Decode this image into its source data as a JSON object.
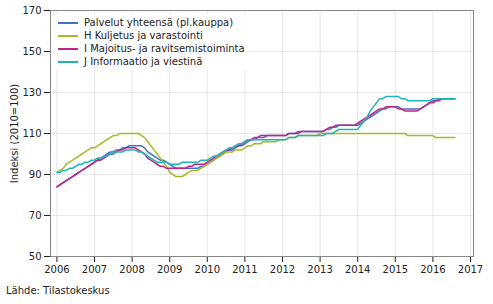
{
  "chart_data": {
    "type": "line",
    "ylabel": "Indeksi (2010=100)",
    "source": "Lähde: Tilastokeskus",
    "xlim": [
      2005.83,
      2017.08
    ],
    "xticks": [
      2006,
      2007,
      2008,
      2009,
      2010,
      2011,
      2012,
      2013,
      2014,
      2015,
      2016,
      2017
    ],
    "ylim": [
      50,
      170
    ],
    "yticks": [
      50,
      70,
      90,
      110,
      130,
      150,
      170
    ],
    "grid": true,
    "legend": "upper left",
    "x": [
      2006,
      2006.0833333333333,
      2006.1666666666667,
      2006.25,
      2006.3333333333333,
      2006.4166666666667,
      2006.5,
      2006.5833333333333,
      2006.6666666666667,
      2006.75,
      2006.8333333333333,
      2006.9166666666667,
      2007,
      2007.0833333333333,
      2007.1666666666667,
      2007.25,
      2007.3333333333333,
      2007.4166666666667,
      2007.5,
      2007.5833333333333,
      2007.6666666666667,
      2007.75,
      2007.8333333333333,
      2007.9166666666667,
      2008,
      2008.0833333333333,
      2008.1666666666667,
      2008.25,
      2008.3333333333333,
      2008.4166666666667,
      2008.5,
      2008.5833333333333,
      2008.6666666666667,
      2008.75,
      2008.8333333333333,
      2008.9166666666667,
      2009,
      2009.0833333333333,
      2009.1666666666667,
      2009.25,
      2009.3333333333333,
      2009.4166666666667,
      2009.5,
      2009.5833333333333,
      2009.6666666666667,
      2009.75,
      2009.8333333333333,
      2009.9166666666667,
      2010,
      2010.0833333333333,
      2010.1666666666667,
      2010.25,
      2010.3333333333333,
      2010.4166666666667,
      2010.5,
      2010.5833333333333,
      2010.6666666666667,
      2010.75,
      2010.8333333333333,
      2010.9166666666667,
      2011,
      2011.0833333333333,
      2011.1666666666667,
      2011.25,
      2011.3333333333333,
      2011.4166666666667,
      2011.5,
      2011.5833333333333,
      2011.6666666666667,
      2011.75,
      2011.8333333333333,
      2011.9166666666667,
      2012,
      2012.0833333333333,
      2012.1666666666667,
      2012.25,
      2012.3333333333333,
      2012.4166666666667,
      2012.5,
      2012.5833333333333,
      2012.6666666666667,
      2012.75,
      2012.8333333333333,
      2012.9166666666667,
      2013,
      2013.0833333333333,
      2013.1666666666667,
      2013.25,
      2013.3333333333333,
      2013.4166666666667,
      2013.5,
      2013.5833333333333,
      2013.6666666666667,
      2013.75,
      2013.8333333333333,
      2013.9166666666667,
      2014,
      2014.0833333333333,
      2014.1666666666667,
      2014.25,
      2014.3333333333333,
      2014.4166666666667,
      2014.5,
      2014.5833333333333,
      2014.6666666666667,
      2014.75,
      2014.8333333333333,
      2014.9166666666667,
      2015,
      2015.0833333333333,
      2015.1666666666667,
      2015.25,
      2015.3333333333333,
      2015.4166666666667,
      2015.5,
      2015.5833333333333,
      2015.6666666666667,
      2015.75,
      2015.8333333333333,
      2015.9166666666667,
      2016,
      2016.0833333333333,
      2016.1666666666667,
      2016.25,
      2016.3333333333333,
      2016.4166666666667,
      2016.5,
      2016.5833333333333
    ],
    "series": [
      {
        "name": "Palvelut yhteensä (pl.kauppa)",
        "color": "#4472c4",
        "values": [
          84,
          85,
          86,
          87,
          88,
          89,
          90,
          91,
          92,
          93,
          94,
          95,
          96,
          97,
          98,
          99,
          100,
          101,
          101,
          102,
          102,
          103,
          103,
          104,
          104,
          104,
          104,
          104,
          103,
          101,
          100,
          99,
          98,
          97,
          97,
          96,
          95,
          94,
          93,
          93,
          93,
          93,
          93,
          93,
          93,
          93,
          94,
          94,
          95,
          96,
          97,
          98,
          99,
          100,
          101,
          102,
          102,
          103,
          104,
          104,
          105,
          106,
          107,
          107,
          108,
          108,
          108,
          109,
          109,
          109,
          109,
          109,
          109,
          109,
          110,
          110,
          110,
          111,
          111,
          111,
          111,
          111,
          111,
          111,
          111,
          111,
          112,
          112,
          113,
          113,
          114,
          114,
          114,
          114,
          114,
          114,
          114,
          115,
          116,
          117,
          118,
          119,
          120,
          121,
          122,
          122,
          123,
          123,
          123,
          123,
          122,
          122,
          122,
          122,
          122,
          122,
          122,
          123,
          124,
          125,
          126,
          126,
          127,
          127,
          127,
          127,
          127,
          127
        ]
      },
      {
        "name": "H Kuljetus ja varastointi",
        "color": "#aab82a",
        "values": [
          91,
          92,
          93,
          95,
          96,
          97,
          98,
          99,
          100,
          101,
          102,
          103,
          103,
          104,
          105,
          106,
          107,
          108,
          109,
          109,
          110,
          110,
          110,
          110,
          110,
          110,
          110,
          109,
          108,
          106,
          104,
          102,
          100,
          98,
          96,
          94,
          91,
          90,
          89,
          89,
          89,
          90,
          91,
          92,
          92,
          92,
          93,
          94,
          95,
          96,
          97,
          98,
          99,
          100,
          101,
          101,
          101,
          102,
          102,
          102,
          103,
          104,
          104,
          105,
          105,
          105,
          106,
          106,
          106,
          106,
          106,
          107,
          107,
          107,
          108,
          108,
          108,
          109,
          109,
          109,
          109,
          109,
          109,
          109,
          110,
          110,
          110,
          110,
          110,
          110,
          110,
          110,
          110,
          110,
          110,
          110,
          110,
          110,
          110,
          110,
          110,
          110,
          110,
          110,
          110,
          110,
          110,
          110,
          110,
          110,
          110,
          110,
          109,
          109,
          109,
          109,
          109,
          109,
          109,
          109,
          109,
          108,
          108,
          108,
          108,
          108,
          108,
          108
        ]
      },
      {
        "name": "I Majoitus- ja ravitsemistoiminta",
        "color": "#c0228a",
        "values": [
          84,
          85,
          86,
          87,
          88,
          89,
          90,
          91,
          92,
          93,
          94,
          95,
          96,
          97,
          97,
          98,
          99,
          100,
          100,
          101,
          102,
          102,
          103,
          103,
          103,
          103,
          102,
          101,
          100,
          98,
          97,
          96,
          95,
          94,
          94,
          93,
          93,
          93,
          93,
          93,
          93,
          93,
          94,
          94,
          95,
          95,
          95,
          95,
          96,
          97,
          98,
          99,
          100,
          101,
          102,
          102,
          103,
          104,
          104,
          105,
          106,
          107,
          107,
          108,
          108,
          109,
          109,
          109,
          109,
          109,
          109,
          109,
          109,
          109,
          110,
          110,
          110,
          110,
          111,
          111,
          111,
          111,
          111,
          111,
          111,
          111,
          112,
          113,
          113,
          114,
          114,
          114,
          114,
          114,
          114,
          114,
          115,
          116,
          117,
          118,
          119,
          120,
          121,
          122,
          122,
          123,
          123,
          123,
          123,
          122,
          122,
          121,
          121,
          121,
          121,
          121,
          122,
          123,
          124,
          125,
          125,
          126,
          126,
          127,
          127,
          127,
          127,
          127
        ]
      },
      {
        "name": "J Informaatio ja viestinä",
        "color": "#22b5b5",
        "values": [
          91,
          91,
          92,
          92,
          93,
          93,
          94,
          95,
          95,
          96,
          96,
          97,
          97,
          98,
          98,
          99,
          99,
          100,
          100,
          101,
          101,
          101,
          102,
          102,
          102,
          102,
          101,
          101,
          100,
          99,
          98,
          97,
          96,
          96,
          96,
          96,
          95,
          95,
          95,
          95,
          96,
          96,
          96,
          96,
          96,
          96,
          97,
          97,
          97,
          98,
          99,
          99,
          100,
          101,
          102,
          103,
          103,
          104,
          105,
          105,
          106,
          107,
          107,
          107,
          107,
          107,
          107,
          107,
          107,
          107,
          107,
          107,
          107,
          107,
          108,
          108,
          108,
          109,
          109,
          109,
          109,
          109,
          109,
          109,
          109,
          109,
          110,
          110,
          110,
          111,
          112,
          112,
          112,
          112,
          112,
          112,
          112,
          114,
          116,
          118,
          121,
          123,
          125,
          127,
          127,
          128,
          128,
          128,
          128,
          128,
          127,
          127,
          126,
          126,
          126,
          126,
          126,
          126,
          126,
          126,
          127,
          127,
          127,
          127,
          127,
          127,
          127,
          127
        ]
      }
    ]
  }
}
